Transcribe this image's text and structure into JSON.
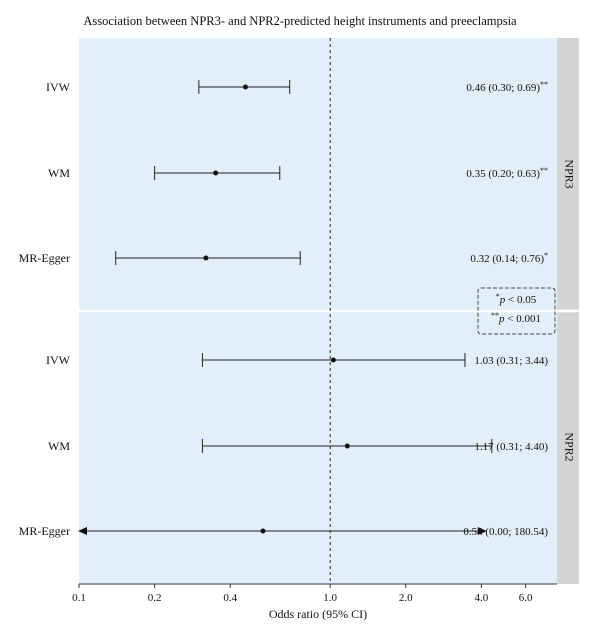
{
  "chart_data": {
    "type": "forest",
    "title": "Association between NPR3- and NPR2-predicted height instruments and preeclampsia",
    "xlabel": "Odds ratio (95% CI)",
    "x_scale": "log",
    "xlim": [
      0.1,
      8.0
    ],
    "x_ticks": [
      {
        "value": 0.1,
        "label": "0.1"
      },
      {
        "value": 0.2,
        "label": "0.2"
      },
      {
        "value": 0.4,
        "label": "0.4"
      },
      {
        "value": 1.0,
        "label": "1.0"
      },
      {
        "value": 2.0,
        "label": "2.0"
      },
      {
        "value": 4.0,
        "label": "4.0"
      },
      {
        "value": 6.0,
        "label": "6.0"
      }
    ],
    "reference_line": 1.0,
    "panel_background": "#e3eff8",
    "strip_background": "#d4d4d4",
    "panels": [
      {
        "strip_label": "NPR3",
        "rows": [
          {
            "method": "IVW",
            "or": 0.46,
            "lo": 0.3,
            "hi": 0.69,
            "label": "0.46 (0.30; 0.69)",
            "sig": "**"
          },
          {
            "method": "WM",
            "or": 0.35,
            "lo": 0.2,
            "hi": 0.63,
            "label": "0.35 (0.20; 0.63)",
            "sig": "**"
          },
          {
            "method": "MR-Egger",
            "or": 0.32,
            "lo": 0.14,
            "hi": 0.76,
            "label": "0.32 (0.14; 0.76)",
            "sig": "*"
          }
        ]
      },
      {
        "strip_label": "NPR2",
        "rows": [
          {
            "method": "IVW",
            "or": 1.03,
            "lo": 0.31,
            "hi": 3.44,
            "label": "1.03 (0.31; 3.44)",
            "sig": ""
          },
          {
            "method": "WM",
            "or": 1.17,
            "lo": 0.31,
            "hi": 4.4,
            "label": "1.17 (0.31; 4.40)",
            "sig": ""
          },
          {
            "method": "MR-Egger",
            "or": 0.54,
            "lo": 0.0,
            "hi": 180.54,
            "label": "0.54 (0.00; 180.54)",
            "sig": ""
          }
        ]
      }
    ],
    "significance_legend": [
      {
        "mark": "*",
        "text": "p < 0.05"
      },
      {
        "mark": "**",
        "text": "p < 0.001"
      }
    ]
  }
}
